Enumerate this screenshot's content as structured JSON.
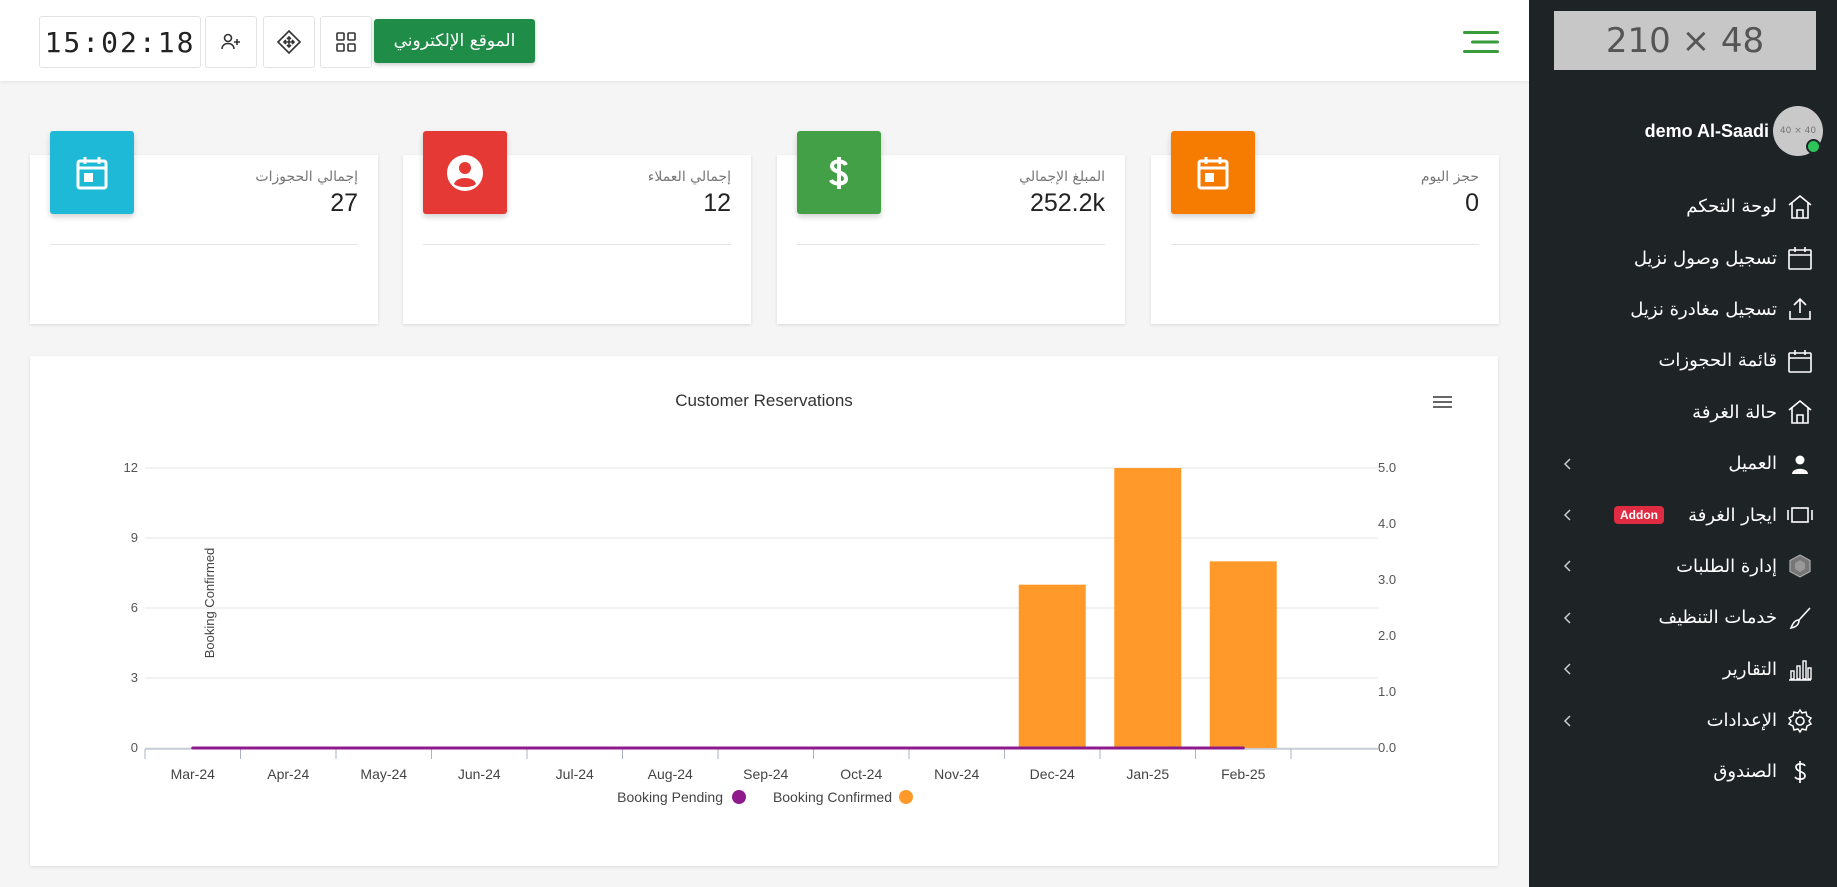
{
  "logo_placeholder": "210 × 48",
  "avatar_placeholder": "40 × 40",
  "user": {
    "name": "demo Al-Saadi"
  },
  "sidebar": {
    "items": [
      {
        "label": "لوحة التحكم",
        "icon": "home-icon",
        "chevron": false
      },
      {
        "label": "تسجيل وصول نزيل",
        "icon": "calendar-icon",
        "chevron": false
      },
      {
        "label": "تسجيل مغادرة نزيل",
        "icon": "upload-icon",
        "chevron": false
      },
      {
        "label": "قائمة الحجوزات",
        "icon": "calendar-icon",
        "chevron": false
      },
      {
        "label": "حالة الغرفة",
        "icon": "home-icon",
        "chevron": false
      },
      {
        "label": "العميل",
        "icon": "person-icon",
        "chevron": true
      },
      {
        "label": "ايجار الغرفة",
        "icon": "film-icon",
        "chevron": true,
        "badge": "Addon"
      },
      {
        "label": "إدارة الطلبات",
        "icon": "hexagon-icon",
        "chevron": true
      },
      {
        "label": "خدمات التنظيف",
        "icon": "brush-icon",
        "chevron": true
      },
      {
        "label": "التقارير",
        "icon": "bar-chart-icon",
        "chevron": true
      },
      {
        "label": "الإعدادات",
        "icon": "gear-icon",
        "chevron": true
      },
      {
        "label": "الصندوق",
        "icon": "dollar-icon",
        "chevron": false
      }
    ]
  },
  "topbar": {
    "clock": "15:02:18",
    "website_button": "الموقع الإلكتروني"
  },
  "cards": [
    {
      "label": "حجز اليوم",
      "value": "0",
      "color": "#f57c00",
      "icon": "calendar-icon"
    },
    {
      "label": "المبلغ الإجمالي",
      "value": "252.2k",
      "color": "#43a047",
      "icon": "dollar-icon"
    },
    {
      "label": "إجمالي العملاء",
      "value": "12",
      "color": "#e53935",
      "icon": "user-circle-icon"
    },
    {
      "label": "إجمالي الحجوزات",
      "value": "27",
      "color": "#1eb9d6",
      "icon": "calendar-icon"
    }
  ],
  "chart_data": {
    "type": "bar",
    "title": "Customer Reservations",
    "categories": [
      "Mar-24",
      "Apr-24",
      "May-24",
      "Jun-24",
      "Jul-24",
      "Aug-24",
      "Sep-24",
      "Oct-24",
      "Nov-24",
      "Dec-24",
      "Jan-25",
      "Feb-25"
    ],
    "series": [
      {
        "name": "Booking Confirmed",
        "type": "bar",
        "axis": "left",
        "color": "#ff9a2a",
        "values": [
          0,
          0,
          0,
          0,
          0,
          0,
          0,
          0,
          0,
          7,
          12,
          8
        ]
      },
      {
        "name": "Booking Pending",
        "type": "line",
        "axis": "right",
        "color": "#8e1a8c",
        "values": [
          0,
          0,
          0,
          0,
          0,
          0,
          0,
          0,
          0,
          0,
          0,
          0
        ]
      }
    ],
    "y_left": {
      "ticks": [
        "0",
        "3",
        "6",
        "9",
        "12"
      ],
      "range": [
        0,
        12
      ],
      "label": "Booking Confirmed"
    },
    "y_right": {
      "ticks": [
        "0.0",
        "1.0",
        "2.0",
        "3.0",
        "4.0",
        "5.0"
      ],
      "range": [
        0,
        5
      ]
    },
    "legend": {
      "position": "bottom",
      "items": [
        "Booking Pending",
        "Booking Confirmed"
      ]
    },
    "grid": true
  }
}
